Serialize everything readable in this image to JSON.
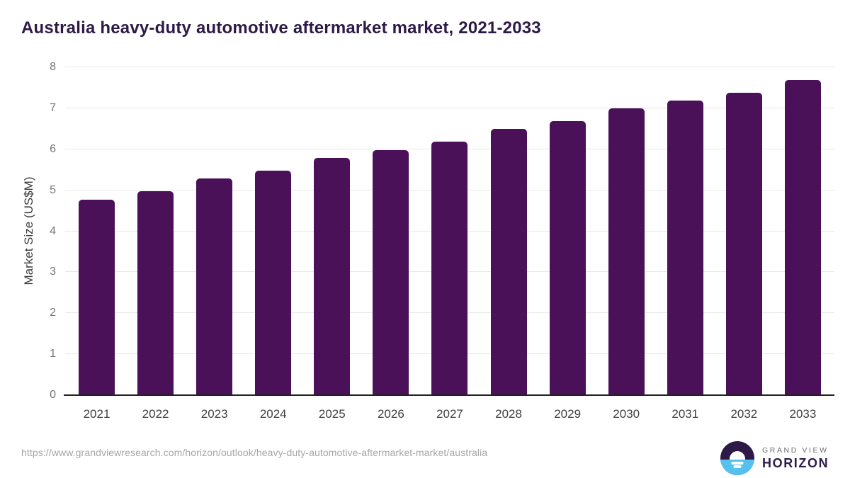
{
  "header": {
    "title": "Australia heavy-duty automotive aftermarket market, 2021-2033"
  },
  "chart_data": {
    "type": "bar",
    "title": "Australia heavy-duty automotive aftermarket market, 2021-2033",
    "categories": [
      "2021",
      "2022",
      "2023",
      "2024",
      "2025",
      "2026",
      "2027",
      "2028",
      "2029",
      "2030",
      "2031",
      "2032",
      "2033"
    ],
    "values": [
      4.77,
      4.97,
      5.28,
      5.48,
      5.78,
      5.98,
      6.19,
      6.49,
      6.69,
      6.99,
      7.19,
      7.38,
      7.69
    ],
    "xlabel": "",
    "ylabel": "Market Size (US$M)",
    "ylim": [
      0,
      8
    ],
    "yticks": [
      0,
      1,
      2,
      3,
      4,
      5,
      6,
      7,
      8
    ],
    "grid": true,
    "legend": "none",
    "bar_corner_radius": "rounded-top"
  },
  "footer": {
    "source_url": "https://www.grandviewresearch.com/horizon/outlook/heavy-duty-automotive-aftermarket-market/australia",
    "logo": {
      "line1": "GRAND VIEW",
      "line2": "HORIZON",
      "mark": "horizon-sunrise-icon"
    }
  },
  "colors": {
    "bar-purple": "#4A1159",
    "title-purple": "#2E1A47",
    "grid-gray": "#E8E8E8",
    "axis-dark": "#222222",
    "ytick-gray": "#757575",
    "xtick-gray": "#3F3F3F",
    "ylabel-gray": "#3C3C3C",
    "url-gray": "#A6A6A6",
    "logo-blue": "#56C1EF",
    "logo-gray": "#6B6B76"
  }
}
